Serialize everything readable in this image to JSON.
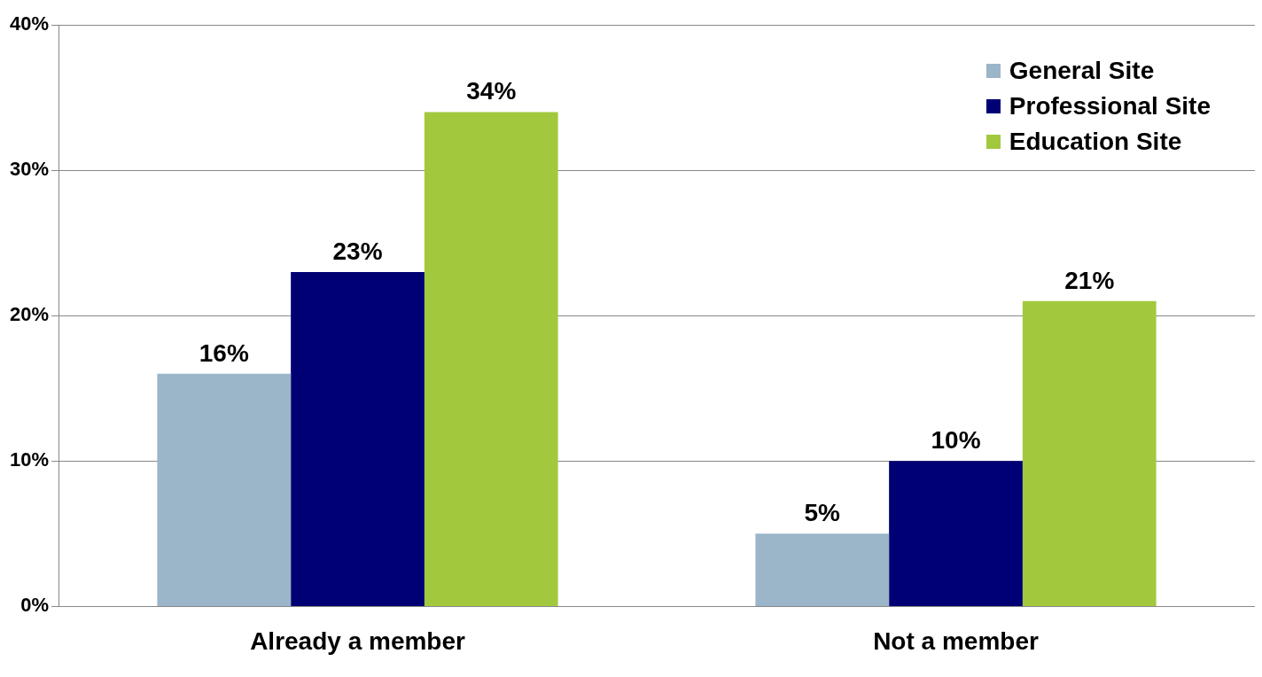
{
  "chart_data": {
    "type": "bar",
    "categories": [
      "Already a member",
      "Not a member"
    ],
    "series": [
      {
        "name": "General Site",
        "color": "#9bb5c9",
        "values": [
          16,
          5
        ],
        "value_labels": [
          "16%",
          "5%"
        ]
      },
      {
        "name": "Professional Site",
        "color": "#000074",
        "values": [
          23,
          10
        ],
        "value_labels": [
          "23%",
          "10%"
        ]
      },
      {
        "name": "Education Site",
        "color": "#a2c93e",
        "values": [
          34,
          21
        ],
        "value_labels": [
          "34%",
          "21%"
        ]
      }
    ],
    "ylim": [
      0,
      40
    ],
    "yticks": [
      {
        "value": 0,
        "label": "0%"
      },
      {
        "value": 10,
        "label": "10%"
      },
      {
        "value": 20,
        "label": "20%"
      },
      {
        "value": 30,
        "label": "30%"
      },
      {
        "value": 40,
        "label": "40%"
      }
    ],
    "grid": "y",
    "legend": "top right"
  }
}
